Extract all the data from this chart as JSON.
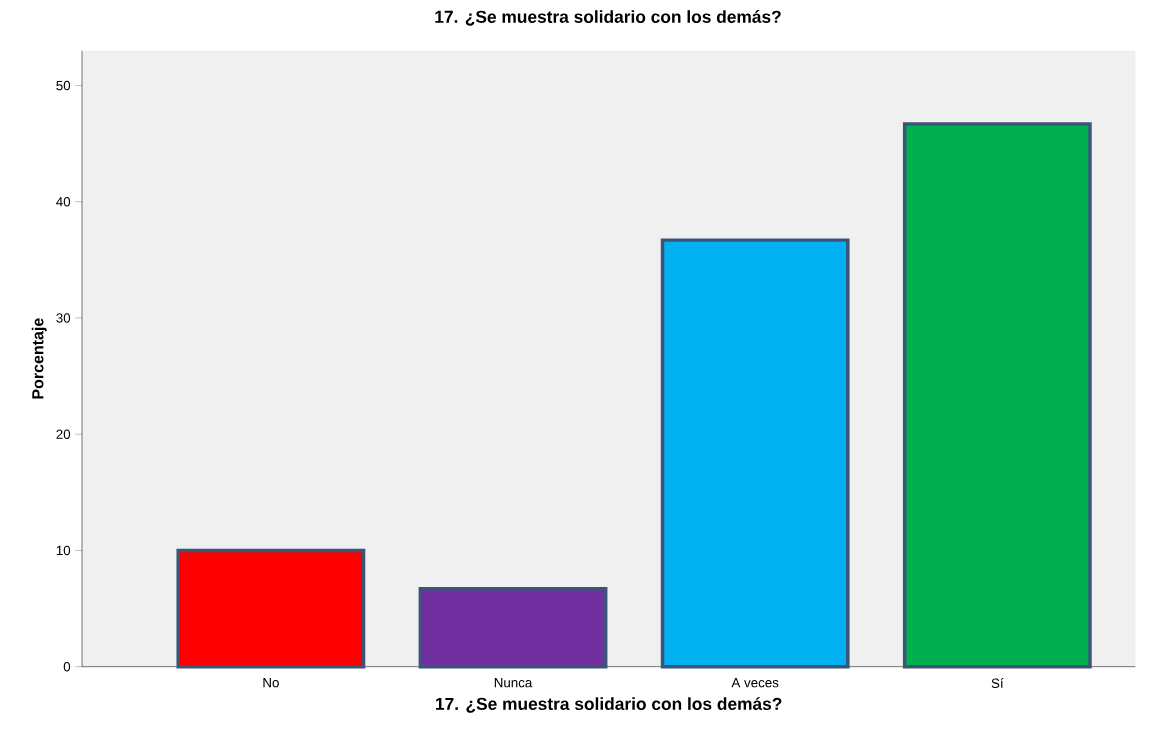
{
  "chart_data": {
    "type": "bar",
    "title": "17. ¿Se muestra solidario con los demás?",
    "xlabel": "17. ¿Se muestra solidario con los demás?",
    "ylabel": "Porcentaje",
    "categories": [
      "No",
      "Nunca",
      "A veces",
      "Sí"
    ],
    "values": [
      10,
      6.7,
      36.7,
      46.7
    ],
    "colors": [
      "#ff0000",
      "#7030a0",
      "#00b0f0",
      "#00b050"
    ],
    "ylim": [
      0,
      53
    ],
    "yticks": [
      0,
      10,
      20,
      30,
      40,
      50
    ],
    "grid": false
  }
}
